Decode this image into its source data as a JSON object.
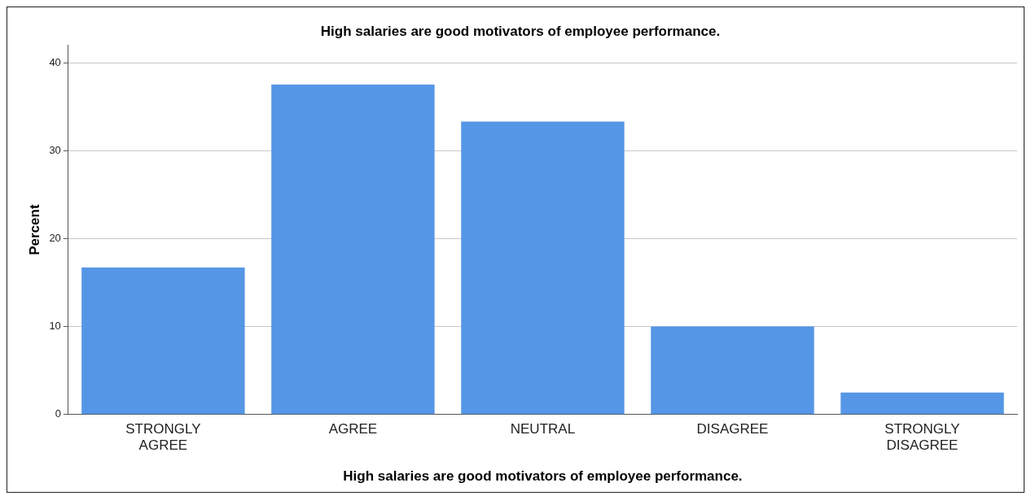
{
  "chart_data": {
    "type": "bar",
    "title": "High salaries are good motivators of employee performance.",
    "xlabel": "High salaries are good motivators of employee performance.",
    "ylabel": "Percent",
    "categories": [
      "STRONGLY AGREE",
      "AGREE",
      "NEUTRAL",
      "DISAGREE",
      "STRONGLY DISAGREE"
    ],
    "values": [
      16.7,
      37.5,
      33.3,
      10.0,
      2.5
    ],
    "color": "#5596e6",
    "ylim": [
      0,
      42
    ],
    "yticks": [
      0,
      10,
      20,
      30,
      40
    ],
    "grid": "y",
    "legend": false
  }
}
